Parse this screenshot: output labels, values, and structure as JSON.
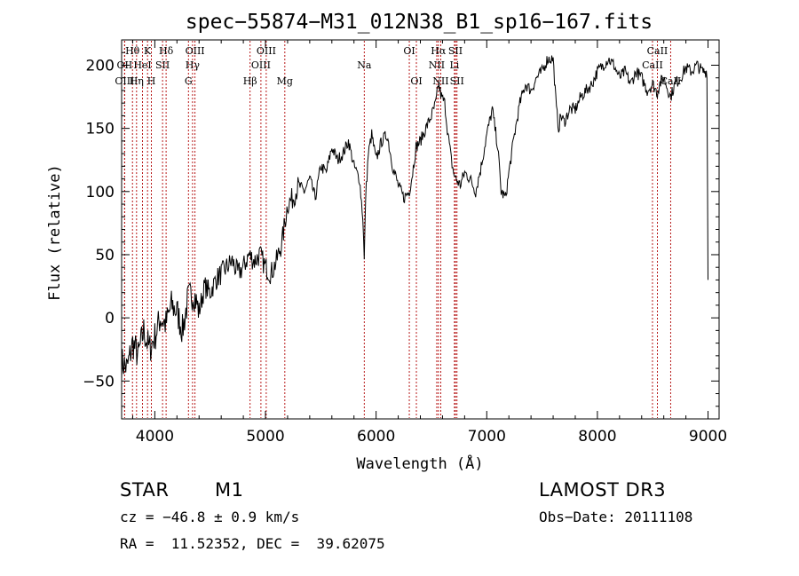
{
  "chart_data": {
    "type": "line",
    "title": "spec−55874−M31_012N38_B1_sp16−167.fits",
    "xlabel": "Wavelength (Å)",
    "ylabel": "Flux (relative)",
    "xlim": [
      3700,
      9100
    ],
    "ylim": [
      -80,
      220
    ],
    "x_ticks": [
      4000,
      5000,
      6000,
      7000,
      8000,
      9000
    ],
    "y_ticks": [
      -50,
      0,
      50,
      100,
      150,
      200
    ],
    "grid": false,
    "line_color": "#000000",
    "marker_color": "#b00000",
    "series": [
      {
        "name": "flux",
        "x": [
          3700,
          3750,
          3800,
          3850,
          3900,
          3950,
          4000,
          4050,
          4100,
          4150,
          4200,
          4250,
          4300,
          4350,
          4400,
          4450,
          4500,
          4550,
          4600,
          4650,
          4700,
          4750,
          4800,
          4850,
          4900,
          4950,
          5000,
          5050,
          5100,
          5150,
          5200,
          5250,
          5300,
          5350,
          5400,
          5450,
          5500,
          5550,
          5600,
          5650,
          5700,
          5750,
          5800,
          5850,
          5880,
          5893,
          5905,
          5930,
          5960,
          6000,
          6050,
          6100,
          6150,
          6200,
          6250,
          6300,
          6330,
          6360,
          6400,
          6450,
          6500,
          6540,
          6563,
          6590,
          6620,
          6650,
          6680,
          6700,
          6720,
          6760,
          6800,
          6850,
          6900,
          6950,
          7000,
          7050,
          7100,
          7130,
          7170,
          7200,
          7250,
          7300,
          7350,
          7400,
          7450,
          7500,
          7550,
          7600,
          7630,
          7650,
          7670,
          7700,
          7750,
          7800,
          7850,
          7900,
          7950,
          8000,
          8050,
          8100,
          8150,
          8200,
          8250,
          8300,
          8350,
          8400,
          8450,
          8500,
          8542,
          8560,
          8600,
          8662,
          8700,
          8750,
          8800,
          8850,
          8900,
          8950,
          8990,
          9000
        ],
        "y": [
          -35,
          -40,
          -20,
          -30,
          -10,
          -25,
          -15,
          0,
          -5,
          10,
          5,
          -10,
          15,
          20,
          5,
          25,
          20,
          30,
          35,
          40,
          45,
          35,
          40,
          50,
          45,
          50,
          40,
          35,
          45,
          60,
          90,
          95,
          105,
          100,
          110,
          95,
          120,
          115,
          135,
          125,
          130,
          140,
          120,
          110,
          80,
          45,
          95,
          130,
          145,
          125,
          140,
          145,
          120,
          105,
          95,
          100,
          115,
          135,
          140,
          150,
          160,
          170,
          185,
          175,
          170,
          145,
          125,
          115,
          110,
          105,
          115,
          110,
          100,
          120,
          145,
          165,
          135,
          100,
          95,
          115,
          145,
          170,
          185,
          180,
          190,
          195,
          205,
          205,
          165,
          150,
          160,
          155,
          165,
          165,
          175,
          180,
          185,
          195,
          200,
          205,
          200,
          190,
          195,
          185,
          195,
          190,
          180,
          185,
          178,
          185,
          190,
          175,
          185,
          190,
          198,
          195,
          200,
          195,
          195,
          30
        ]
      }
    ],
    "lines": [
      {
        "label": "Hθ",
        "x": 3798,
        "row": 1
      },
      {
        "label": "OII",
        "x": 3727,
        "row": 2
      },
      {
        "label": "OIII",
        "x": 3727,
        "row": 3
      },
      {
        "label": "Hη",
        "x": 3835,
        "row": 3
      },
      {
        "label": "K",
        "x": 3934,
        "row": 1
      },
      {
        "label": "HeI",
        "x": 3889,
        "row": 2
      },
      {
        "label": "SII",
        "x": 4070,
        "row": 2
      },
      {
        "label": "H",
        "x": 3969,
        "row": 3
      },
      {
        "label": "Hδ",
        "x": 4102,
        "row": 1
      },
      {
        "label": "OIII",
        "x": 4363,
        "row": 1
      },
      {
        "label": "Hγ",
        "x": 4341,
        "row": 2
      },
      {
        "label": "G",
        "x": 4304,
        "row": 3
      },
      {
        "label": "Hβ",
        "x": 4861,
        "row": 3
      },
      {
        "label": "OIII",
        "x": 5007,
        "row": 1
      },
      {
        "label": "OIII",
        "x": 4959,
        "row": 2
      },
      {
        "label": "Mg",
        "x": 5175,
        "row": 3
      },
      {
        "label": "Na",
        "x": 5893,
        "row": 2
      },
      {
        "label": "OI",
        "x": 6300,
        "row": 1
      },
      {
        "label": "OI",
        "x": 6364,
        "row": 3
      },
      {
        "label": "Hα",
        "x": 6563,
        "row": 1
      },
      {
        "label": "NII",
        "x": 6548,
        "row": 2
      },
      {
        "label": "NII",
        "x": 6584,
        "row": 3
      },
      {
        "label": "SII",
        "x": 6717,
        "row": 1
      },
      {
        "label": "Li",
        "x": 6708,
        "row": 2
      },
      {
        "label": "SII",
        "x": 6731,
        "row": 3
      },
      {
        "label": "CaII",
        "x": 8542,
        "row": 1
      },
      {
        "label": "CaII",
        "x": 8498,
        "row": 2
      },
      {
        "label": "CaII",
        "x": 8662,
        "row": 3
      }
    ]
  },
  "info": {
    "object_class": "STAR",
    "subclass": "M1",
    "survey": "LAMOST DR3",
    "cz": "cz = −46.8 ± 0.9 km/s",
    "obs_date": "Obs−Date: 20111108",
    "radec": "RA =  11.52352, DEC =  39.62075"
  }
}
